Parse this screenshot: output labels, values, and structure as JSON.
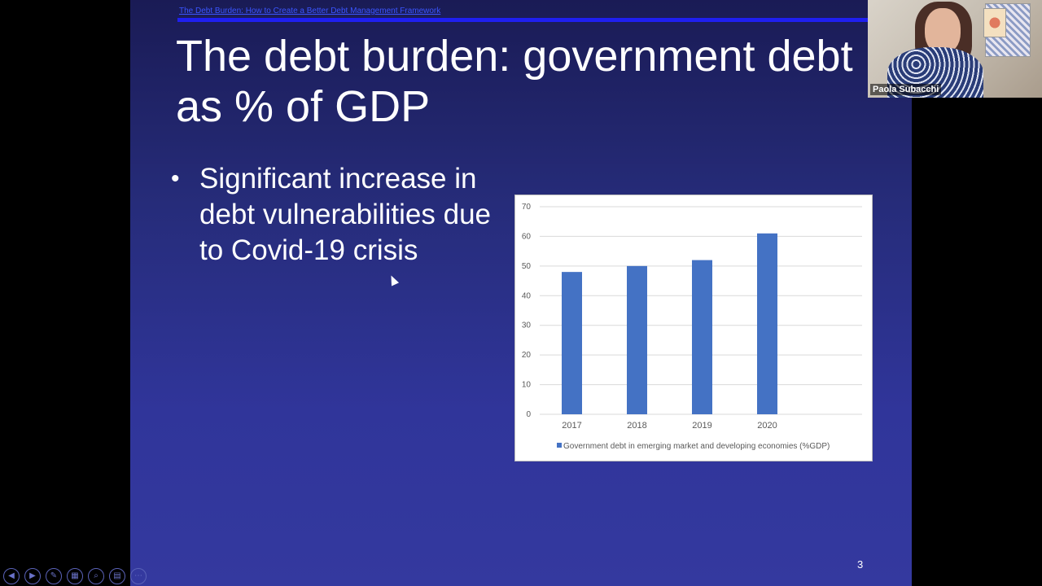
{
  "slide": {
    "header_link": "The Debt Burden: How to Create a Better Debt Management Framework",
    "title": "The debt burden: government debt as % of GDP",
    "bullets": [
      "Significant increase in debt vulnerabilities due to Covid-19 crisis"
    ],
    "page_number": "3"
  },
  "video": {
    "participant_name": "Paola Subacchi"
  },
  "controls": [
    {
      "name": "previous-slide-icon",
      "glyph": "◀"
    },
    {
      "name": "next-slide-icon",
      "glyph": "▶"
    },
    {
      "name": "pen-icon",
      "glyph": "✎"
    },
    {
      "name": "slides-grid-icon",
      "glyph": "▦"
    },
    {
      "name": "zoom-icon",
      "glyph": "⌕"
    },
    {
      "name": "subtitles-icon",
      "glyph": "▤"
    },
    {
      "name": "more-options-icon",
      "glyph": "⋯"
    }
  ],
  "colors": {
    "bar": "#4472c4",
    "grid": "#d9d9d9",
    "slide_text": "#ffffff"
  },
  "chart_data": {
    "type": "bar",
    "categories": [
      "2017",
      "2018",
      "2019",
      "2020"
    ],
    "series": [
      {
        "name": "Government debt in emerging market and developing economies (%GDP)",
        "values": [
          48,
          50,
          52,
          61
        ]
      }
    ],
    "ylim": [
      0,
      70
    ],
    "yticks": [
      0,
      10,
      20,
      30,
      40,
      50,
      60,
      70
    ],
    "grid": true,
    "legend": "bottom"
  }
}
